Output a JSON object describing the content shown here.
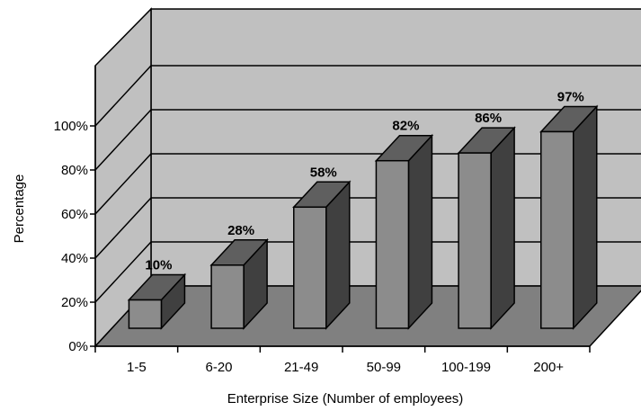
{
  "chart_data": {
    "type": "bar",
    "categories": [
      "1-5",
      "6-20",
      "21-49",
      "50-99",
      "100-199",
      "200+"
    ],
    "values": [
      10,
      28,
      58,
      82,
      86,
      97
    ],
    "data_labels": [
      "10%",
      "28%",
      "58%",
      "82%",
      "86%",
      "97%"
    ],
    "title": "",
    "xlabel": "Enterprise Size (Number of employees)",
    "ylabel": "Percentage",
    "ylim": [
      0,
      100
    ],
    "yticks": [
      "0%",
      "20%",
      "40%",
      "60%",
      "80%",
      "100%"
    ],
    "grid": true,
    "style": "3d-column",
    "colors": {
      "back_wall": "#c0c0c0",
      "side_wall": "#c0c0c0",
      "floor": "#808080",
      "bar_front": "#8c8c8c",
      "bar_top": "#5f5f5f",
      "bar_side": "#404040"
    }
  }
}
